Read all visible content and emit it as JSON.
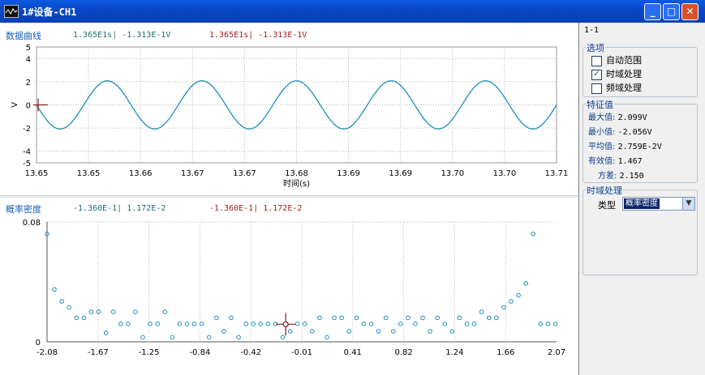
{
  "window": {
    "title": "1#设备-CH1",
    "icon": "oscilloscope-icon"
  },
  "controls": {
    "minimize": "_",
    "maximize": "□",
    "close": "✕"
  },
  "time_panel": {
    "label": "数据曲线",
    "cursor1": "1.365E1s| -1.313E-1V",
    "cursor2": "1.365E1s| -1.313E-1V",
    "ylabel": "V",
    "xlabel": "时间(s)",
    "y_ticks": [
      "5",
      "4",
      "2",
      "0",
      "-2",
      "-4",
      "-5"
    ],
    "x_ticks": [
      "13.65",
      "13.65",
      "13.66",
      "13.67",
      "13.67",
      "13.68",
      "13.69",
      "13.69",
      "13.70",
      "13.70",
      "13.71"
    ]
  },
  "freq_panel": {
    "label": "概率密度",
    "cursor1": "-1.360E-1| 1.172E-2",
    "cursor2": "-1.360E-1| 1.172E-2",
    "y_ticks": [
      "0.08",
      "0"
    ],
    "x_ticks": [
      "-2.08",
      "-1.67",
      "-1.25",
      "-0.84",
      "-0.42",
      "-0.01",
      "0.41",
      "0.82",
      "1.24",
      "1.66",
      "2.07"
    ]
  },
  "sidebar": {
    "id_label": "1-1",
    "options_title": "选项",
    "options": [
      {
        "label": "自动范围",
        "checked": false
      },
      {
        "label": "时域处理",
        "checked": true
      },
      {
        "label": "频域处理",
        "checked": false
      }
    ],
    "stats_title": "特征值",
    "stats": [
      {
        "key": "最大值:",
        "value": "2.099V"
      },
      {
        "key": "最小值:",
        "value": "-2.056V"
      },
      {
        "key": "平均值:",
        "value": "2.759E-2V"
      },
      {
        "key": "有效值:",
        "value": "1.467"
      },
      {
        "key": "方差:",
        "value": "2.150"
      }
    ],
    "time_proc_title": "时域处理",
    "type_label": "类型",
    "type_value": "概率密度"
  },
  "colors": {
    "trace": "#1c8fb8",
    "cursor": "#8b1a1a",
    "grid": "#b8b8b8"
  },
  "chart_data": [
    {
      "type": "line",
      "xlabel": "时间(s)",
      "ylabel": "V",
      "xlim": [
        13.65,
        13.71
      ],
      "ylim": [
        -5,
        5
      ],
      "series": [
        {
          "amplitude": 2.08,
          "cycles": 5.5,
          "values_shape": "sine"
        }
      ]
    },
    {
      "type": "scatter",
      "xlim": [
        -2.08,
        2.07
      ],
      "ylim": [
        0,
        0.08
      ],
      "x": [
        -2.08,
        -2.02,
        -1.96,
        -1.9,
        -1.84,
        -1.78,
        -1.72,
        -1.66,
        -1.6,
        -1.54,
        -1.48,
        -1.42,
        -1.36,
        -1.3,
        -1.24,
        -1.18,
        -1.12,
        -1.06,
        -1.0,
        -0.94,
        -0.88,
        -0.82,
        -0.76,
        -0.7,
        -0.64,
        -0.58,
        -0.52,
        -0.46,
        -0.4,
        -0.34,
        -0.28,
        -0.22,
        -0.16,
        -0.1,
        -0.04,
        0.02,
        0.08,
        0.14,
        0.2,
        0.26,
        0.32,
        0.38,
        0.44,
        0.5,
        0.56,
        0.62,
        0.68,
        0.74,
        0.8,
        0.86,
        0.92,
        0.98,
        1.04,
        1.1,
        1.16,
        1.22,
        1.28,
        1.34,
        1.4,
        1.46,
        1.52,
        1.58,
        1.64,
        1.7,
        1.76,
        1.82,
        1.88,
        1.94,
        2.0,
        2.06
      ],
      "y": [
        0.072,
        0.035,
        0.027,
        0.023,
        0.016,
        0.016,
        0.02,
        0.02,
        0.006,
        0.02,
        0.012,
        0.012,
        0.02,
        0.003,
        0.012,
        0.012,
        0.02,
        0.003,
        0.012,
        0.012,
        0.012,
        0.012,
        0.003,
        0.016,
        0.007,
        0.016,
        0.003,
        0.012,
        0.012,
        0.012,
        0.012,
        0.012,
        0.003,
        0.007,
        0.012,
        0.012,
        0.007,
        0.016,
        0.003,
        0.016,
        0.016,
        0.007,
        0.016,
        0.012,
        0.012,
        0.007,
        0.016,
        0.007,
        0.012,
        0.016,
        0.012,
        0.016,
        0.007,
        0.016,
        0.012,
        0.007,
        0.016,
        0.012,
        0.012,
        0.02,
        0.016,
        0.016,
        0.023,
        0.027,
        0.031,
        0.039,
        0.072,
        0.012,
        0.012,
        0.012
      ]
    }
  ]
}
